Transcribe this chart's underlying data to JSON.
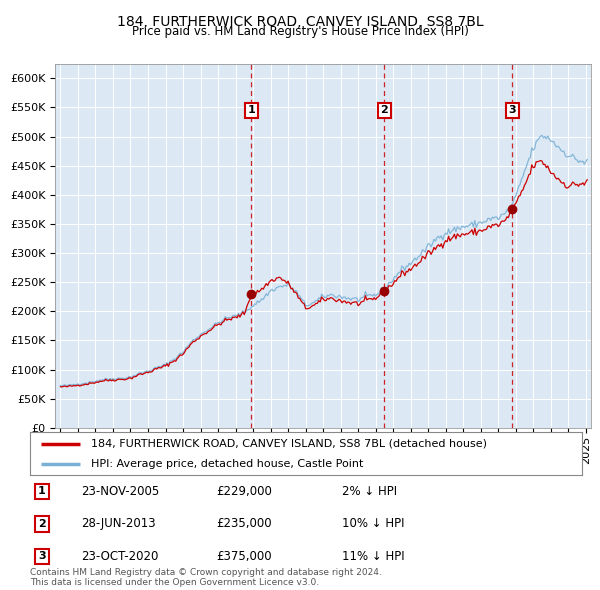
{
  "title": "184, FURTHERWICK ROAD, CANVEY ISLAND, SS8 7BL",
  "subtitle": "Price paid vs. HM Land Registry's House Price Index (HPI)",
  "background_color": "#dce9f5",
  "line_color_property": "#cc0000",
  "line_color_hpi": "#7ab0d4",
  "transaction_dates_decimal": [
    2005.896,
    2013.493,
    2020.806
  ],
  "transaction_prices": [
    229000,
    235000,
    375000
  ],
  "transaction_labels": [
    "1",
    "2",
    "3"
  ],
  "legend_property": "184, FURTHERWICK ROAD, CANVEY ISLAND, SS8 7BL (detached house)",
  "legend_hpi": "HPI: Average price, detached house, Castle Point",
  "table_rows": [
    {
      "num": "1",
      "date": "23-NOV-2005",
      "price": "£229,000",
      "pct": "2% ↓ HPI"
    },
    {
      "num": "2",
      "date": "28-JUN-2013",
      "price": "£235,000",
      "pct": "10% ↓ HPI"
    },
    {
      "num": "3",
      "date": "23-OCT-2020",
      "price": "£375,000",
      "pct": "11% ↓ HPI"
    }
  ],
  "footer": "Contains HM Land Registry data © Crown copyright and database right 2024.\nThis data is licensed under the Open Government Licence v3.0.",
  "xlim_start": 1994.7,
  "xlim_end": 2025.3,
  "ylim_top": 625000,
  "yticks": [
    0,
    50000,
    100000,
    150000,
    200000,
    250000,
    300000,
    350000,
    400000,
    450000,
    500000,
    550000,
    600000
  ]
}
